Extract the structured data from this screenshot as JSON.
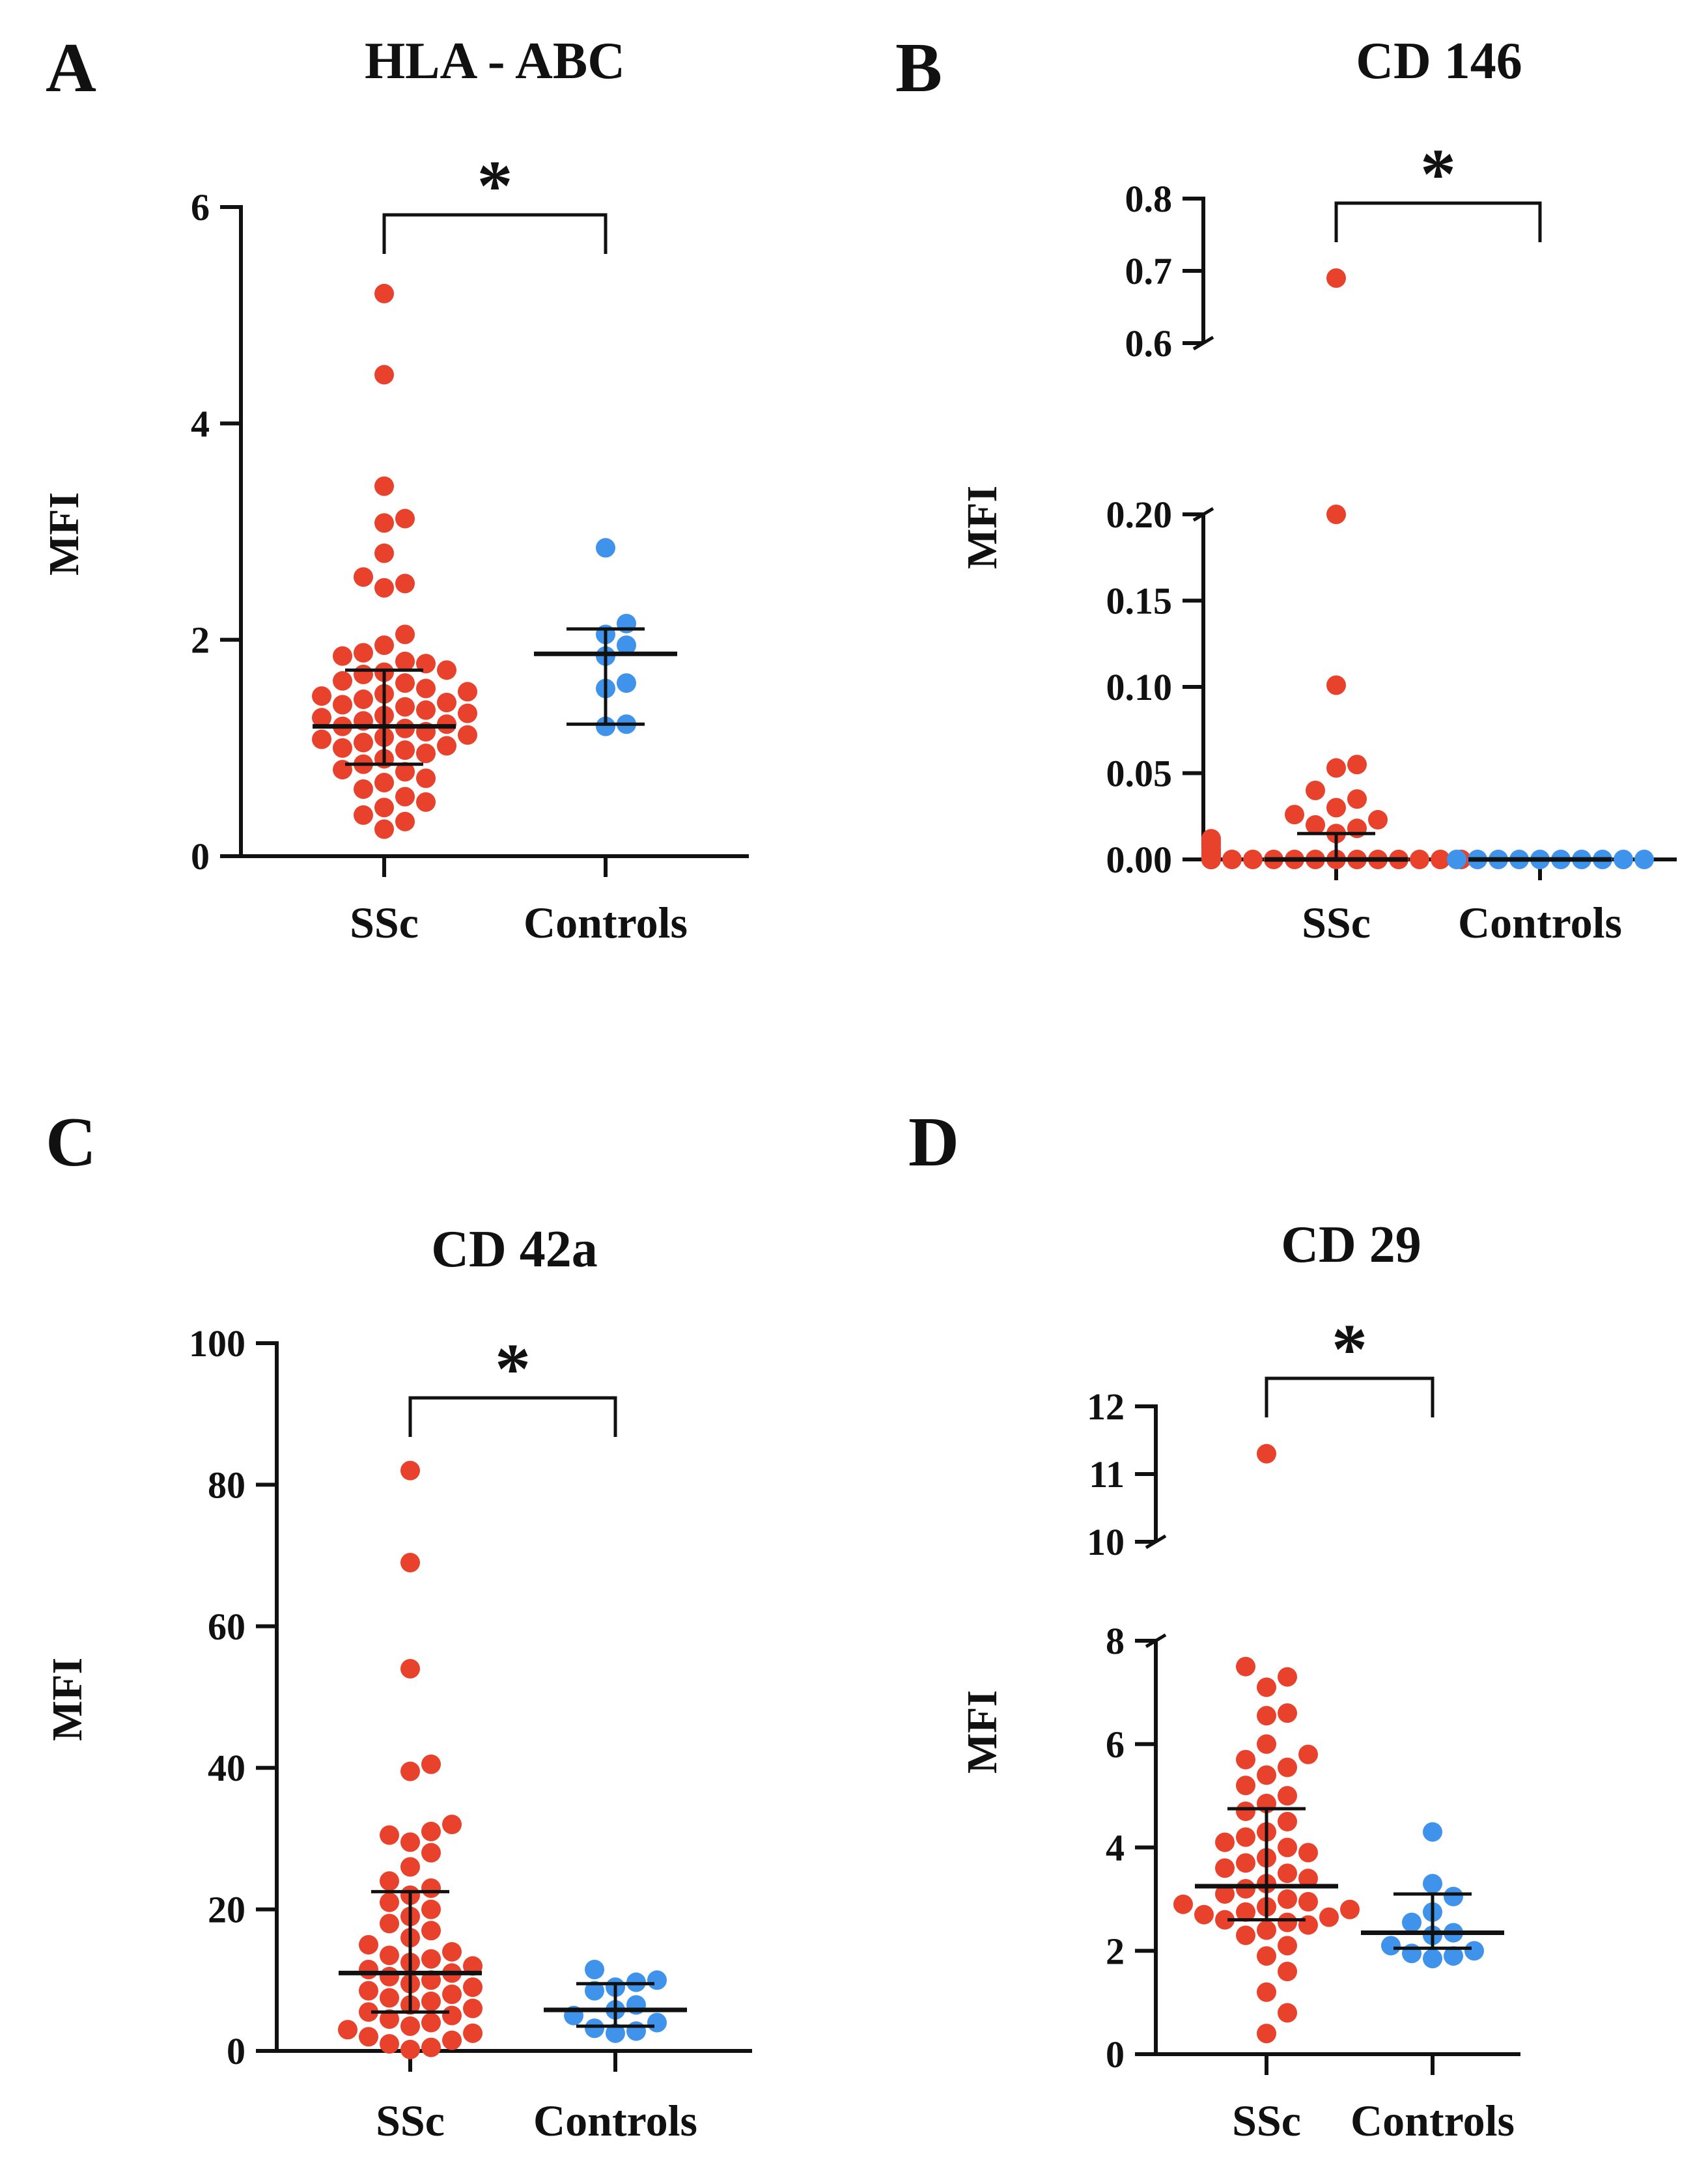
{
  "colors": {
    "ssc": "#e8412c",
    "controls": "#3f93ea",
    "axis": "#111111"
  },
  "chart_data": [
    {
      "type": "scatter",
      "panel": "A",
      "title": "HLA - ABC",
      "ylabel": "MFI",
      "categories": [
        "SSc",
        "Controls"
      ],
      "yticks": [
        "0",
        "2",
        "4",
        "6"
      ],
      "ylim": [
        0,
        6
      ],
      "significance": "*",
      "series": [
        {
          "name": "SSc",
          "median": 1.2,
          "q1": 0.85,
          "q3": 1.72,
          "values": [
            5.2,
            4.45,
            3.42,
            3.12,
            3.08,
            2.8,
            2.58,
            2.52,
            2.48,
            2.05,
            1.95,
            1.88,
            1.85,
            1.8,
            1.78,
            1.72,
            1.7,
            1.68,
            1.62,
            1.6,
            1.55,
            1.52,
            1.5,
            1.48,
            1.45,
            1.42,
            1.4,
            1.38,
            1.35,
            1.32,
            1.3,
            1.28,
            1.25,
            1.22,
            1.2,
            1.18,
            1.15,
            1.12,
            1.1,
            1.08,
            1.05,
            1.02,
            1.0,
            0.98,
            0.95,
            0.9,
            0.85,
            0.8,
            0.78,
            0.72,
            0.68,
            0.62,
            0.55,
            0.5,
            0.45,
            0.38,
            0.32,
            0.25
          ]
        },
        {
          "name": "Controls",
          "median": 1.87,
          "q1": 1.22,
          "q3": 2.1,
          "values": [
            2.85,
            2.15,
            2.05,
            1.95,
            1.85,
            1.6,
            1.55,
            1.22,
            1.2
          ]
        }
      ]
    },
    {
      "type": "scatter",
      "panel": "B",
      "title": "CD 146",
      "ylabel": "MFI",
      "categories": [
        "SSc",
        "Controls"
      ],
      "yticks_lower": [
        "0.00",
        "0.05",
        "0.10",
        "0.15",
        "0.20"
      ],
      "yticks_upper": [
        "0.6",
        "0.7",
        "0.8"
      ],
      "ylim_lower": [
        0,
        0.2
      ],
      "ylim_upper": [
        0.6,
        0.8
      ],
      "significance": "*",
      "series": [
        {
          "name": "SSc",
          "median": 0.0,
          "q1": 0.0,
          "q3": 0.015,
          "values": [
            0.69,
            0.2,
            0.101,
            0.055,
            0.053,
            0.04,
            0.035,
            0.03,
            0.026,
            0.023,
            0.02,
            0.018,
            0.015,
            0.012,
            0.01,
            0.008,
            0.006,
            0.005,
            0.004,
            0.003,
            0.002,
            0.002,
            0.001,
            0.001,
            0.001,
            0,
            0,
            0,
            0,
            0,
            0,
            0,
            0,
            0,
            0,
            0,
            0,
            0,
            0,
            0,
            0,
            0
          ]
        },
        {
          "name": "Controls",
          "median": 0.0,
          "q1": 0.0,
          "q3": 0.0,
          "values": [
            0,
            0,
            0,
            0,
            0,
            0,
            0,
            0,
            0,
            0
          ]
        }
      ]
    },
    {
      "type": "scatter",
      "panel": "C",
      "title": "CD 42a",
      "ylabel": "MFI",
      "categories": [
        "SSc",
        "Controls"
      ],
      "yticks": [
        "0",
        "20",
        "40",
        "60",
        "80",
        "100"
      ],
      "ylim": [
        0,
        100
      ],
      "significance": "*",
      "series": [
        {
          "name": "SSc",
          "median": 11,
          "q1": 5.5,
          "q3": 22.5,
          "values": [
            82,
            69,
            54,
            40.5,
            39.5,
            32,
            31,
            30.5,
            29.5,
            28,
            26,
            24,
            23,
            22,
            21,
            20,
            19,
            18,
            17,
            16,
            15,
            14,
            13.5,
            13,
            12.5,
            12,
            11.5,
            11,
            10.5,
            10,
            9.5,
            9,
            8.5,
            8,
            7.5,
            7,
            6.5,
            6,
            5.5,
            5,
            4.5,
            4,
            3.5,
            3,
            2.5,
            2,
            1.5,
            1,
            0.5,
            0.2
          ]
        },
        {
          "name": "Controls",
          "median": 5.8,
          "q1": 3.5,
          "q3": 9.5,
          "values": [
            11.5,
            10,
            9.7,
            9,
            8.5,
            6.5,
            5.8,
            5,
            4,
            3.2,
            2.8,
            2.5
          ]
        }
      ]
    },
    {
      "type": "scatter",
      "panel": "D",
      "title": "CD 29",
      "ylabel": "MFI",
      "categories": [
        "SSc",
        "Controls"
      ],
      "yticks_lower": [
        "0",
        "2",
        "4",
        "6",
        "8"
      ],
      "yticks_upper": [
        "10",
        "11",
        "12"
      ],
      "ylim_lower": [
        0,
        8
      ],
      "ylim_upper": [
        10,
        12
      ],
      "significance": "*",
      "series": [
        {
          "name": "SSc",
          "median": 3.25,
          "q1": 2.6,
          "q3": 4.75,
          "values": [
            11.3,
            7.5,
            7.3,
            7.1,
            6.6,
            6.55,
            6.0,
            5.8,
            5.7,
            5.55,
            5.4,
            5.2,
            5.0,
            4.85,
            4.7,
            4.5,
            4.3,
            4.2,
            4.1,
            4.0,
            3.9,
            3.8,
            3.7,
            3.6,
            3.5,
            3.4,
            3.3,
            3.2,
            3.1,
            3.0,
            2.95,
            2.9,
            2.85,
            2.8,
            2.75,
            2.7,
            2.65,
            2.6,
            2.55,
            2.5,
            2.4,
            2.3,
            2.1,
            1.9,
            1.6,
            1.2,
            0.8,
            0.4
          ]
        },
        {
          "name": "Controls",
          "median": 2.35,
          "q1": 2.05,
          "q3": 3.1,
          "values": [
            4.3,
            3.3,
            3.05,
            2.75,
            2.55,
            2.35,
            2.3,
            2.1,
            2.0,
            1.95,
            1.9,
            1.85
          ]
        }
      ]
    }
  ]
}
